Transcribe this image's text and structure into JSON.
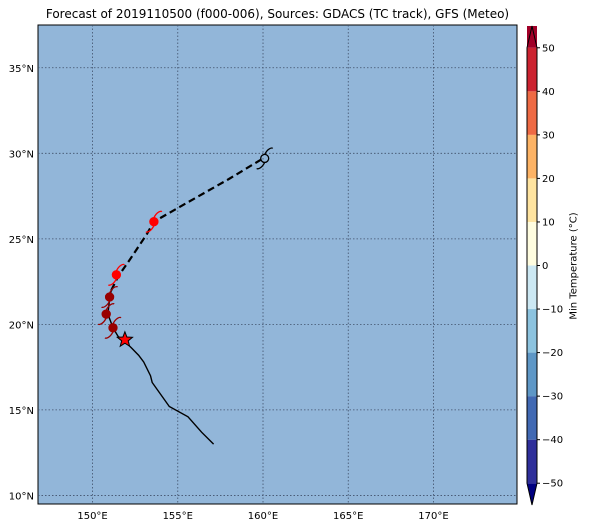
{
  "title": "Forecast of 2019110500 (f000-006), Sources: GDACS (TC track), GFS (Meteo)",
  "map": {
    "lon_range": [
      146.8,
      174.9
    ],
    "lat_range": [
      9.5,
      37.5
    ],
    "ocean_color": "#92b6d9",
    "grid_style": "dotted",
    "lon_ticks": [
      {
        "value": 150,
        "label": "150°E"
      },
      {
        "value": 155,
        "label": "155°E"
      },
      {
        "value": 160,
        "label": "160°E"
      },
      {
        "value": 165,
        "label": "165°E"
      },
      {
        "value": 170,
        "label": "170°E"
      }
    ],
    "lat_ticks": [
      {
        "value": 10,
        "label": "10°N"
      },
      {
        "value": 15,
        "label": "15°N"
      },
      {
        "value": 20,
        "label": "20°N"
      },
      {
        "value": 25,
        "label": "25°N"
      },
      {
        "value": 30,
        "label": "30°N"
      },
      {
        "value": 35,
        "label": "35°N"
      }
    ]
  },
  "track": {
    "observed": [
      [
        157.1,
        13.0
      ],
      [
        156.4,
        13.7
      ],
      [
        155.6,
        14.6
      ],
      [
        154.5,
        15.2
      ],
      [
        153.5,
        16.6
      ],
      [
        153.4,
        17.0
      ],
      [
        153.0,
        17.8
      ],
      [
        152.7,
        18.2
      ],
      [
        152.3,
        18.6
      ],
      [
        151.9,
        19.0
      ],
      [
        151.5,
        19.3
      ],
      [
        151.2,
        19.8
      ],
      [
        150.9,
        20.6
      ],
      [
        151.0,
        21.5
      ],
      [
        151.1,
        22.0
      ]
    ],
    "forecast": [
      [
        151.1,
        22.0
      ],
      [
        151.5,
        22.8
      ],
      [
        152.2,
        23.8
      ],
      [
        153.2,
        25.3
      ],
      [
        153.6,
        26.0
      ],
      [
        155.0,
        26.8
      ],
      [
        158.0,
        28.5
      ],
      [
        160.0,
        29.7
      ]
    ],
    "current_position": [
      151.9,
      19.1
    ],
    "current_color": "#ff0000",
    "storm_points": [
      {
        "lon": 151.2,
        "lat": 19.8,
        "color": "#990000"
      },
      {
        "lon": 150.8,
        "lat": 20.6,
        "color": "#990000"
      },
      {
        "lon": 151.0,
        "lat": 21.6,
        "color": "#990000"
      },
      {
        "lon": 151.4,
        "lat": 22.9,
        "color": "#ff0000"
      },
      {
        "lon": 153.6,
        "lat": 26.0,
        "color": "#ff0000"
      },
      {
        "lon": 160.1,
        "lat": 29.7,
        "color": "#000000"
      }
    ]
  },
  "colorbar": {
    "label": "Min Temperature (°C)",
    "min": -55,
    "max": 55,
    "colors": [
      "#000080",
      "#2f2f9a",
      "#4169b3",
      "#5e97c6",
      "#8cc3df",
      "#cce8f3",
      "#fffde0",
      "#ffe4a0",
      "#fdb365",
      "#ee6a44",
      "#cc2330",
      "#a00028",
      "#700020"
    ],
    "boundaries": [
      -55,
      -50,
      -40,
      -30,
      -20,
      -10,
      0,
      10,
      20,
      30,
      40,
      50,
      55
    ],
    "ticks": [
      "50",
      "40",
      "30",
      "20",
      "10",
      "0",
      "−10",
      "−20",
      "−30",
      "−40",
      "−50"
    ],
    "tick_values": [
      50,
      40,
      30,
      20,
      10,
      0,
      -10,
      -20,
      -30,
      -40,
      -50
    ]
  }
}
